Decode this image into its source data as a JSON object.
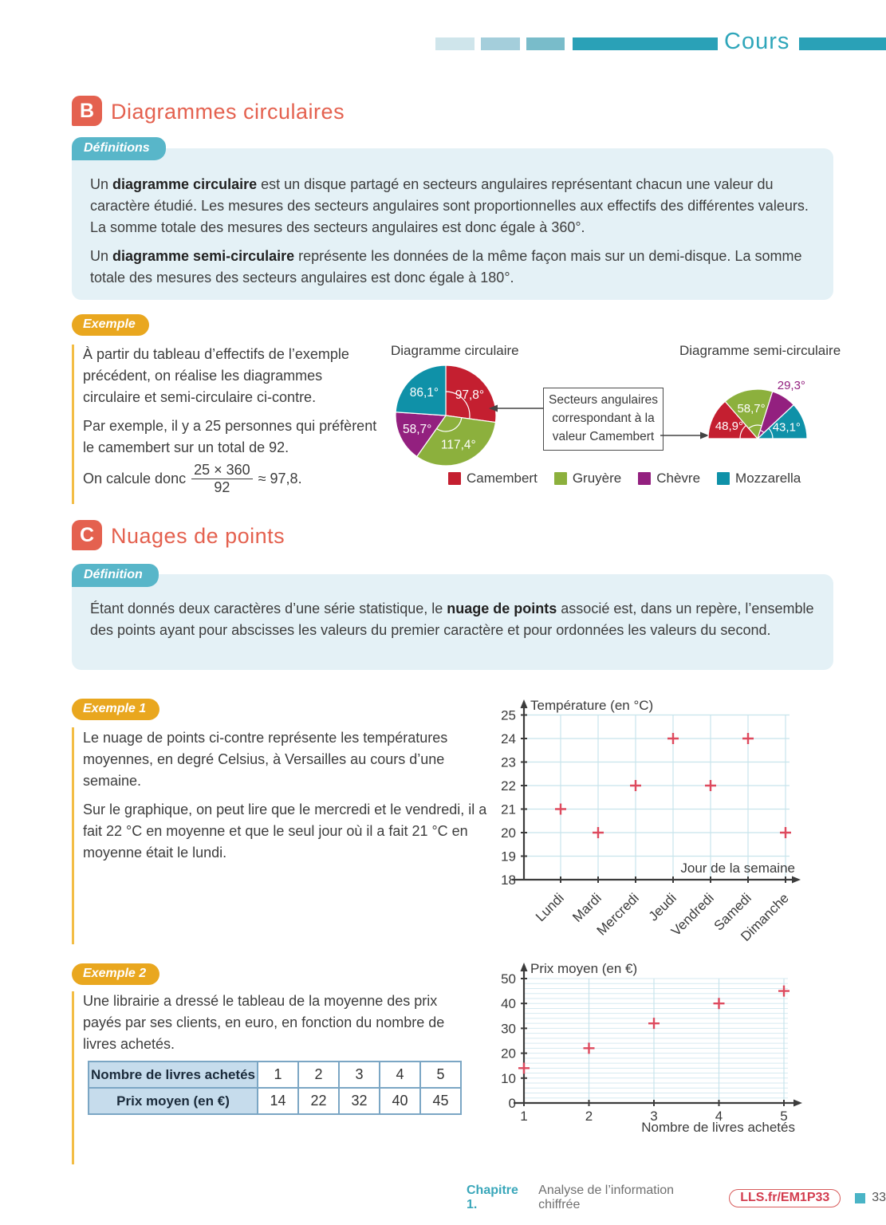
{
  "header": {
    "title": "Cours"
  },
  "section_b": {
    "letter": "B",
    "title": "Diagrammes circulaires"
  },
  "def_b": {
    "badge": "Définitions",
    "p1": {
      "r0": "Un ",
      "r1": "diagramme circulaire",
      "r2": " est un disque partagé en secteurs angulaires représentant chacun une valeur du caractère étudié. Les mesures des secteurs angulaires sont proportionnelles aux effectifs des différentes valeurs. La somme totale des mesures des secteurs angulaires est donc égale à 360°."
    },
    "p2": {
      "r0": "Un ",
      "r1": "diagramme semi-circulaire",
      "r2": " représente les données de la même façon mais sur un demi-disque. La somme totale des mesures des secteurs angulaires est donc égale à 180°."
    }
  },
  "example_b": {
    "badge": "Exemple",
    "p1": "À partir du tableau d’effectifs de l’exemple précédent, on réalise les diagrammes circulaire et semi-circulaire ci-contre.",
    "p2": "Par exemple, il y a 25 personnes qui préfèrent le camembert sur un total de 92.",
    "calc_prefix": "On calcule donc",
    "frac_num": "25 × 360",
    "frac_den": "92",
    "calc_suffix": "≈ 97,8."
  },
  "callout": {
    "l1": "Secteurs angulaires",
    "l2": "correspondant à la",
    "l3": "valeur Camembert"
  },
  "section_c": {
    "letter": "C",
    "title": "Nuages de points"
  },
  "def_c": {
    "badge": "Définition",
    "p1": {
      "r0": "Étant donnés deux caractères d’une série statistique, le ",
      "r1": "nuage de points",
      "r2": " associé est, dans un repère, l’ensemble des points ayant pour abscisses les valeurs du premier caractère et pour ordonnées les valeurs du second."
    }
  },
  "example1": {
    "badge": "Exemple 1",
    "p1": "Le nuage de points ci-contre représente les températures moyennes, en degré Celsius, à Versailles au cours d’une semaine.",
    "p2": "Sur le graphique, on peut lire que le mercredi et le vendredi, il a fait 22 °C en moyenne et que le seul jour où il a fait 21 °C en moyenne était le lundi."
  },
  "example2": {
    "badge": "Exemple 2",
    "p1": "Une librairie a dressé le tableau de la moyenne des prix payés par ses clients, en euro, en fonction du nombre de livres achetés.",
    "table": {
      "row1": {
        "header": "Nombre de livres achetés",
        "cells": [
          "1",
          "2",
          "3",
          "4",
          "5"
        ]
      },
      "row2": {
        "header": "Prix moyen (en €)",
        "cells": [
          "14",
          "22",
          "32",
          "40",
          "45"
        ]
      }
    }
  },
  "footer": {
    "chapter": "Chapitre 1.",
    "chapter_title": "Analyse de l’information chiffrée",
    "link": "LLS.fr/EM1P33",
    "page": "33"
  },
  "colors": {
    "accent_coral": "#e4614f",
    "teal_main": "#2aa1b7",
    "badge_teal": "#58b6c9",
    "defbox_blue": "#e4f1f6",
    "badge_yellow": "#e9a71f",
    "marker_red": "#dd4a5e",
    "grid_blue": "#c8e4ec"
  },
  "chart_data": [
    {
      "type": "pie",
      "title": "Diagramme circulaire",
      "start_angle_deg": -90,
      "direction": "clockwise",
      "total_deg": 360,
      "sectors": [
        {
          "label": "Camembert",
          "angle_deg": 97.8,
          "display": "97,8°",
          "color": "#c41f30"
        },
        {
          "label": "Gruyère",
          "angle_deg": 117.4,
          "display": "117,4°",
          "color": "#8cb03d"
        },
        {
          "label": "Chèvre",
          "angle_deg": 58.7,
          "display": "58,7°",
          "color": "#93207f"
        },
        {
          "label": "Mozzarella",
          "angle_deg": 86.1,
          "display": "86,1°",
          "color": "#0f91a8"
        }
      ],
      "legend_position": "bottom"
    },
    {
      "type": "pie_semicircle",
      "title": "Diagramme semi-circulaire",
      "start_angle_deg": 180,
      "direction": "clockwise",
      "total_deg": 180,
      "sectors": [
        {
          "label": "Camembert",
          "angle_deg": 48.9,
          "display": "48,9°",
          "color": "#c41f30"
        },
        {
          "label": "Gruyère",
          "angle_deg": 58.7,
          "display": "58,7°",
          "color": "#8cb03d"
        },
        {
          "label": "Chèvre",
          "angle_deg": 29.3,
          "display": "29,3°",
          "color": "#93207f",
          "label_outside": true
        },
        {
          "label": "Mozzarella",
          "angle_deg": 43.1,
          "display": "43,1°",
          "color": "#0f91a8"
        }
      ]
    },
    {
      "type": "scatter",
      "title": "Température (en °C)",
      "xlabel": "Jour de la semaine",
      "categories": [
        "Lundi",
        "Mardi",
        "Mercredi",
        "Jeudi",
        "Vendredi",
        "Samedi",
        "Dimanche"
      ],
      "values": [
        21,
        20,
        22,
        24,
        22,
        24,
        20
      ],
      "ylim": [
        18,
        25
      ],
      "ytick_step": 1,
      "grid": true,
      "marker": "plus"
    },
    {
      "type": "scatter",
      "title": "Prix moyen (en €)",
      "xlabel": "Nombre de livres achetés",
      "x": [
        1,
        2,
        3,
        4,
        5
      ],
      "y": [
        14,
        22,
        32,
        40,
        45
      ],
      "xlim": [
        1,
        5
      ],
      "ylim": [
        0,
        50
      ],
      "ytick_step": 10,
      "minor_grid_step": 2,
      "grid": true,
      "marker": "plus"
    }
  ]
}
